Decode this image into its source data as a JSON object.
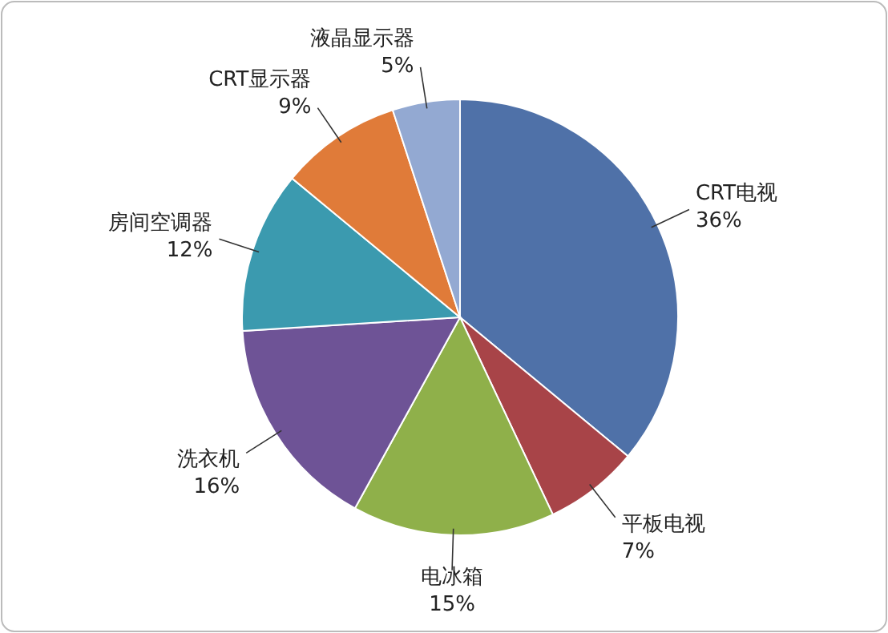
{
  "chart_data": {
    "type": "pie",
    "categories": [
      "CRT电视",
      "平板电视",
      "电冰箱",
      "洗衣机",
      "房间空调器",
      "CRT显示器",
      "液晶显示器"
    ],
    "values": [
      36,
      7,
      15,
      16,
      12,
      9,
      5
    ],
    "value_labels": [
      "36%",
      "7%",
      "15%",
      "16%",
      "12%",
      "9%",
      "5%"
    ],
    "colors": [
      "#4f71a8",
      "#a84448",
      "#8fb04a",
      "#6e5396",
      "#3b9aaf",
      "#e07b39",
      "#93a9d2"
    ]
  }
}
